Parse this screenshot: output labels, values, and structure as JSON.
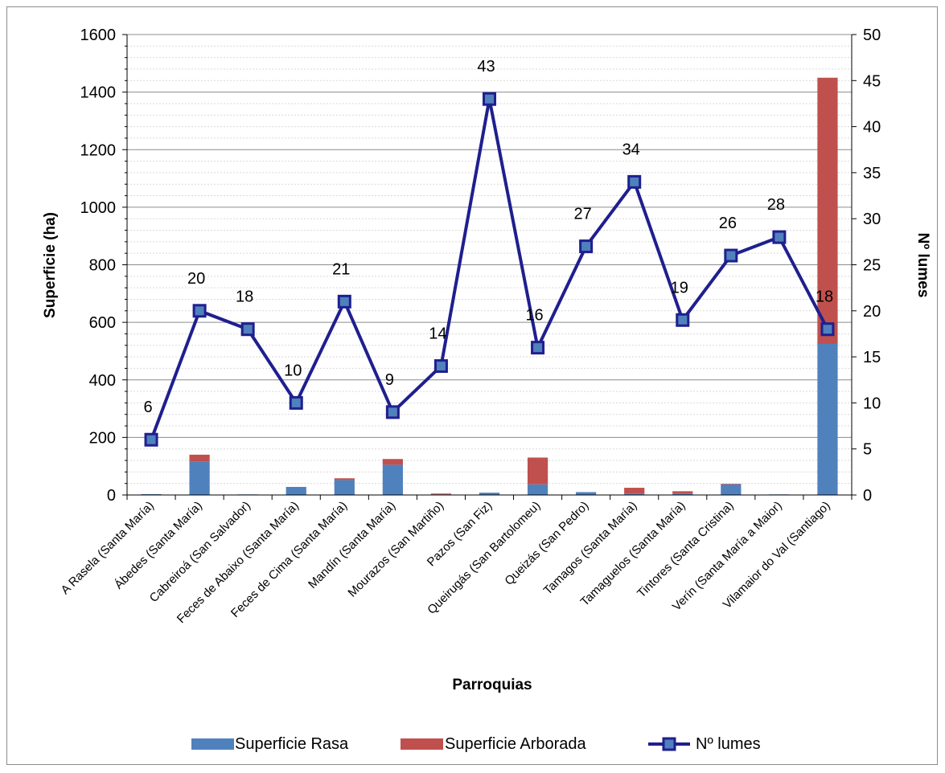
{
  "chart_data": {
    "type": "bar",
    "stacked": true,
    "categories": [
      "A Rasela (Santa María)",
      "Ábedes (Santa María)",
      "Cabreiroá (San Salvador)",
      "Feces de Abaixo (Santa María)",
      "Feces de Cima (Santa María)",
      "Mandín (Santa María)",
      "Mourazos (San Martiño)",
      "Pazos (San Fiz)",
      "Queirugás (San Bartolomeu)",
      "Queizás (San Pedro)",
      "Tamagos (Santa María)",
      "Tamaguelos (Santa María)",
      "Tintores (Santa Cristina)",
      "Verín (Santa María a Maior)",
      "Vilamaior do Val (Santiago)"
    ],
    "series": [
      {
        "name": "Superficie Rasa",
        "axis": "left",
        "kind": "bar",
        "color": "#4f81bd",
        "values": [
          3,
          115,
          2,
          28,
          52,
          105,
          2,
          8,
          37,
          10,
          5,
          5,
          37,
          2,
          525
        ]
      },
      {
        "name": "Superficie Arborada",
        "axis": "left",
        "kind": "bar",
        "color": "#c0504d",
        "values": [
          0,
          25,
          0,
          0,
          6,
          20,
          3,
          0,
          93,
          0,
          20,
          8,
          2,
          0,
          925
        ]
      },
      {
        "name": "Nº lumes",
        "axis": "right",
        "kind": "line",
        "color": "#1f1f8f",
        "values": [
          6,
          20,
          18,
          10,
          21,
          9,
          14,
          43,
          16,
          27,
          34,
          19,
          26,
          28,
          18
        ]
      }
    ],
    "xlabel": "Parroquias",
    "ylabel": "Superficie (ha)",
    "y2label": "Nº lumes",
    "ylim": [
      0,
      1600
    ],
    "y2lim": [
      0,
      50
    ],
    "yticks": [
      "0",
      "200",
      "400",
      "600",
      "800",
      "1000",
      "1200",
      "1400",
      "1600"
    ],
    "y2ticks": [
      "0",
      "5",
      "10",
      "15",
      "20",
      "25",
      "30",
      "35",
      "40",
      "45",
      "50"
    ],
    "grid": true,
    "legend_position": "bottom"
  }
}
